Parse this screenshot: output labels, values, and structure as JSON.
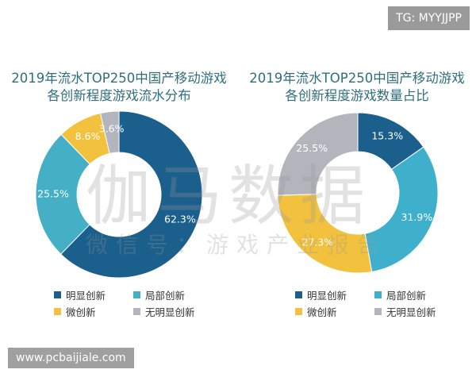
{
  "chart_data": [
    {
      "type": "pie",
      "donut": true,
      "title": [
        "2019年流水TOP250中国产移动游戏",
        "各创新程度游戏流水分布"
      ],
      "categories": [
        "明显创新",
        "局部创新",
        "微创新",
        "无明显创新"
      ],
      "values": [
        62.3,
        25.5,
        8.6,
        3.6
      ],
      "labels": [
        "62.3%",
        "25.5%",
        "8.6%",
        "3.6%"
      ],
      "colors": [
        "#1b5f8c",
        "#45afc6",
        "#f2c23e",
        "#b2b5bc"
      ],
      "legend_position": "bottom"
    },
    {
      "type": "pie",
      "donut": true,
      "title": [
        "2019年流水TOP250中国产移动游戏",
        "各创新程度游戏数量占比"
      ],
      "categories": [
        "明显创新",
        "局部创新",
        "微创新",
        "无明显创新"
      ],
      "values": [
        15.3,
        31.9,
        27.3,
        25.5
      ],
      "labels": [
        "15.3%",
        "31.9%",
        "27.3%",
        "25.5%"
      ],
      "colors": [
        "#1b5f8c",
        "#3fb0cc",
        "#f2c23e",
        "#b2b5bc"
      ],
      "legend_position": "bottom"
    }
  ],
  "watermark": {
    "logo": "伽马数据",
    "sub": "微信号：游戏产业报告"
  },
  "overlay": {
    "tg": "TG: MYYJJPP",
    "site": "www.pcbaijiale.com"
  }
}
